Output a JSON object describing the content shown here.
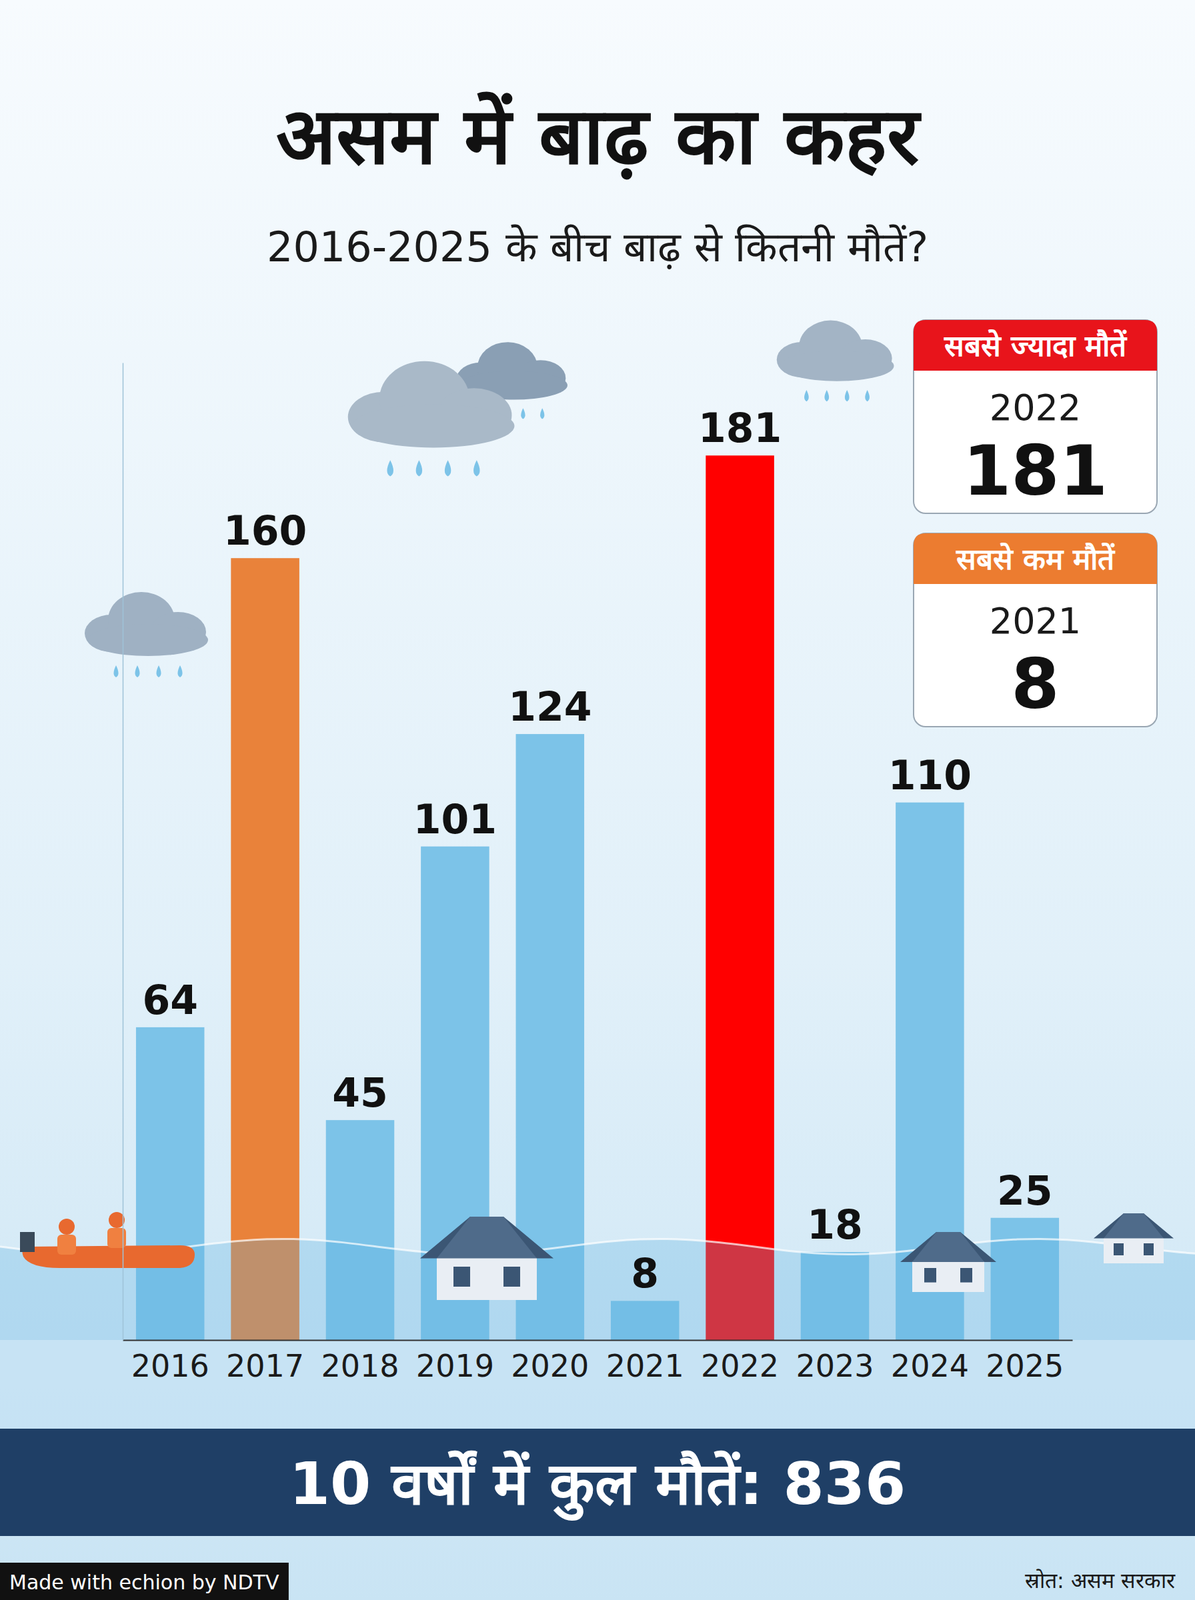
{
  "chart_data": {
    "type": "bar",
    "title": "असम में बाढ़ का कहर",
    "subtitle": "2016-2025 के बीच बाढ़ से कितनी मौतें?",
    "categories": [
      "2016",
      "2017",
      "2018",
      "2019",
      "2020",
      "2021",
      "2022",
      "2023",
      "2024",
      "2025"
    ],
    "values": [
      64,
      160,
      45,
      101,
      124,
      8,
      181,
      18,
      110,
      25
    ],
    "colors": [
      "#7cc3e8",
      "#e9823a",
      "#7cc3e8",
      "#7cc3e8",
      "#7cc3e8",
      "#7cc3e8",
      "#ff0000",
      "#7cc3e8",
      "#7cc3e8",
      "#7cc3e8"
    ],
    "ylim": [
      0,
      200
    ],
    "tick_labels": "x",
    "data_labels": true,
    "annotations": [
      {
        "title": "सबसे ज्यादा मौतें",
        "label": "2022",
        "value": 181
      },
      {
        "title": "सबसे कम मौतें",
        "label": "2021",
        "value": 8
      }
    ],
    "total": "10 वर्षों में कुल मौतें: 836",
    "source": "स्रोत: असम सरकार",
    "credit": "Made with echion by NDTV"
  }
}
